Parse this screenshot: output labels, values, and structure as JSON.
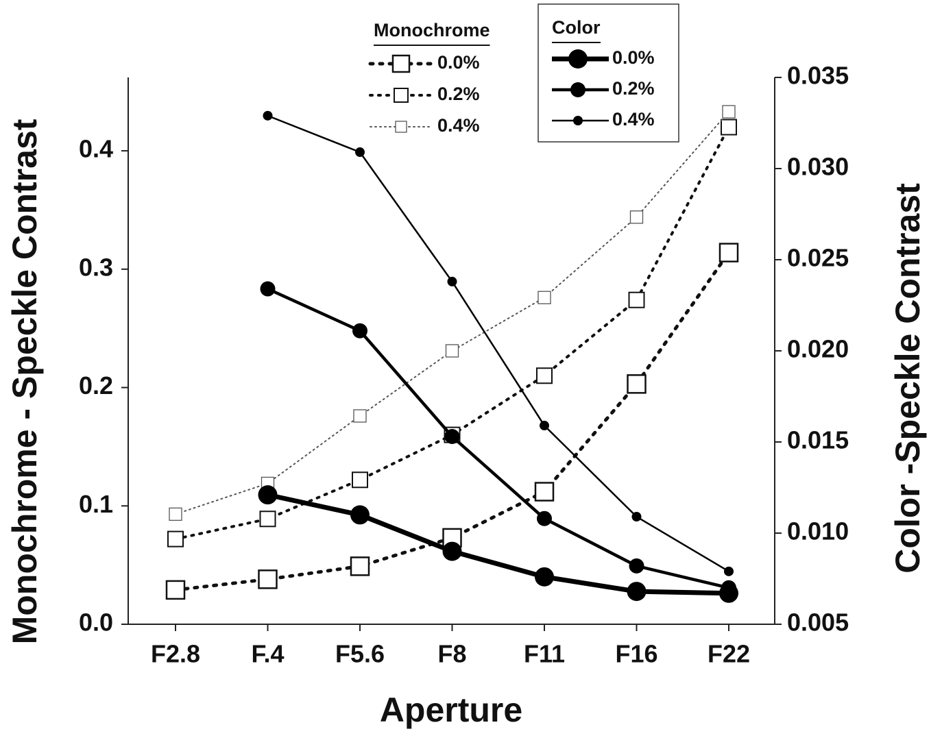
{
  "chart_data": {
    "type": "line",
    "x_label": "Aperture",
    "y_label": "Monochrome - Speckle Contrast",
    "y2_label": "Color -Speckle Contrast",
    "legend_titles": [
      "Monochrome",
      "Color"
    ],
    "categories": [
      "F2.8",
      "F.4",
      "F5.6",
      "F8",
      "F11",
      "F16",
      "F22"
    ],
    "ylim": [
      0,
      0.462
    ],
    "yticks": [
      {
        "value": 0,
        "label": "0.0"
      },
      0.1,
      0.2,
      0.3,
      0.4
    ],
    "y2lim": [
      0.005,
      0.035
    ],
    "y2ticks": [
      0.005,
      {
        "value": 0.01,
        "label": "0.010"
      },
      0.015,
      {
        "value": 0.02,
        "label": "0.020"
      },
      0.025,
      {
        "value": 0.03,
        "label": "0.030"
      },
      0.035
    ],
    "series": [
      {
        "name": "0.0%",
        "color": "#111111",
        "marker": "square",
        "values": [
          0.029,
          0.038,
          0.049,
          0.073,
          0.112,
          0.203,
          0.314
        ]
      },
      {
        "name": "0.2%",
        "color": "#111111",
        "marker": "square",
        "values": [
          0.072,
          0.089,
          0.122,
          0.16,
          0.21,
          0.274,
          0.42
        ]
      },
      {
        "name": "0.4%",
        "color": "#555555",
        "marker": "square",
        "values": [
          0.093,
          0.119,
          0.176,
          0.231,
          0.276,
          0.344,
          0.433
        ]
      },
      {
        "name": "0.0%",
        "color": "#000000",
        "marker": "circle",
        "axis": "y2",
        "values": [
          null,
          0.0121,
          0.011,
          0.009,
          0.0076,
          0.0068,
          0.0067
        ]
      },
      {
        "name": "0.2%",
        "color": "#000000",
        "marker": "circle",
        "axis": "y2",
        "values": [
          null,
          0.0234,
          0.0211,
          0.0153,
          0.0108,
          0.0082,
          0.007
        ]
      },
      {
        "name": "0.4%",
        "color": "#000000",
        "marker": "circle",
        "axis": "y2",
        "values": [
          null,
          0.0329,
          0.0309,
          0.0238,
          0.0159,
          0.0109,
          0.0079
        ]
      }
    ]
  }
}
